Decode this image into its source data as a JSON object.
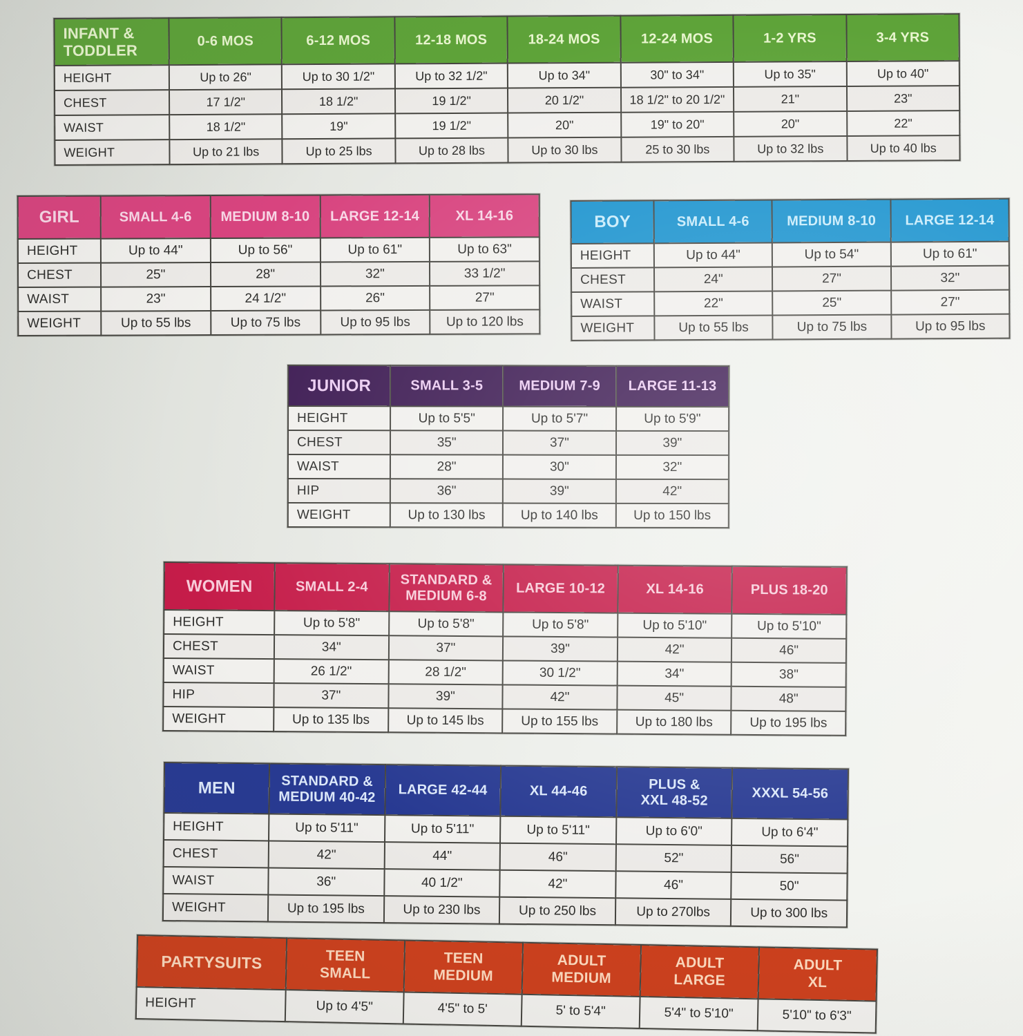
{
  "page": {
    "description": "Costume size chart page",
    "paper_color": "#eef0ec",
    "border_color": "#45443f",
    "cell_bg": "#f1f0ed"
  },
  "tables": [
    {
      "id": "infant-toddler",
      "title": "INFANT &\nTODDLER",
      "theme": {
        "header_bg": "#5ea339",
        "header_text": "#e9f6cf"
      },
      "columns": [
        "0-6 MOS",
        "6-12 MOS",
        "12-18 MOS",
        "18-24 MOS",
        "12-24 MOS",
        "1-2 YRS",
        "3-4 YRS"
      ],
      "rows": [
        {
          "label": "HEIGHT",
          "values": [
            "Up to 26\"",
            "Up to 30 1/2\"",
            "Up to 32 1/2\"",
            "Up to 34\"",
            "30\" to 34\"",
            "Up to 35\"",
            "Up to 40\""
          ]
        },
        {
          "label": "CHEST",
          "values": [
            "17 1/2\"",
            "18 1/2\"",
            "19 1/2\"",
            "20 1/2\"",
            "18 1/2\" to 20 1/2\"",
            "21\"",
            "23\""
          ]
        },
        {
          "label": "WAIST",
          "values": [
            "18 1/2\"",
            "19\"",
            "19 1/2\"",
            "20\"",
            "19\" to 20\"",
            "20\"",
            "22\""
          ]
        },
        {
          "label": "WEIGHT",
          "values": [
            "Up to 21 lbs",
            "Up to 25 lbs",
            "Up to 28 lbs",
            "Up to 30 lbs",
            "25 to 30 lbs",
            "Up to 32 lbs",
            "Up to 40 lbs"
          ]
        }
      ]
    },
    {
      "id": "girl",
      "title": "GIRL",
      "theme": {
        "header_bg": "#d8447f",
        "header_text": "#f8d7e6"
      },
      "columns": [
        "SMALL 4-6",
        "MEDIUM 8-10",
        "LARGE 12-14",
        "XL 14-16"
      ],
      "rows": [
        {
          "label": "HEIGHT",
          "values": [
            "Up to 44\"",
            "Up to 56\"",
            "Up to 61\"",
            "Up to 63\""
          ]
        },
        {
          "label": "CHEST",
          "values": [
            "25\"",
            "28\"",
            "32\"",
            "33 1/2\""
          ]
        },
        {
          "label": "WAIST",
          "values": [
            "23\"",
            "24 1/2\"",
            "26\"",
            "27\""
          ]
        },
        {
          "label": "WEIGHT",
          "values": [
            "Up to 55 lbs",
            "Up to 75 lbs",
            "Up to 95 lbs",
            "Up to 120 lbs"
          ]
        }
      ]
    },
    {
      "id": "boy",
      "title": "BOY",
      "theme": {
        "header_bg": "#1d94cf",
        "header_text": "#c9ecfb"
      },
      "columns": [
        "SMALL 4-6",
        "MEDIUM 8-10",
        "LARGE 12-14"
      ],
      "rows": [
        {
          "label": "HEIGHT",
          "values": [
            "Up to 44\"",
            "Up to 54\"",
            "Up to 61\""
          ]
        },
        {
          "label": "CHEST",
          "values": [
            "24\"",
            "27\"",
            "32\""
          ]
        },
        {
          "label": "WAIST",
          "values": [
            "22\"",
            "25\"",
            "27\""
          ]
        },
        {
          "label": "WEIGHT",
          "values": [
            "Up to 55 lbs",
            "Up to 75 lbs",
            "Up to 95 lbs"
          ]
        }
      ]
    },
    {
      "id": "junior",
      "title": "JUNIOR",
      "theme": {
        "header_bg": "#3d1b53",
        "header_text": "#eccdf2"
      },
      "columns": [
        "SMALL 3-5",
        "MEDIUM 7-9",
        "LARGE 11-13"
      ],
      "rows": [
        {
          "label": "HEIGHT",
          "values": [
            "Up to 5'5\"",
            "Up to 5'7\"",
            "Up to 5'9\""
          ]
        },
        {
          "label": "CHEST",
          "values": [
            "35\"",
            "37\"",
            "39\""
          ]
        },
        {
          "label": "WAIST",
          "values": [
            "28\"",
            "30\"",
            "32\""
          ]
        },
        {
          "label": "HIP",
          "values": [
            "36\"",
            "39\"",
            "42\""
          ]
        },
        {
          "label": "WEIGHT",
          "values": [
            "Up to 130 lbs",
            "Up to 140 lbs",
            "Up to 150 lbs"
          ]
        }
      ]
    },
    {
      "id": "women",
      "title": "WOMEN",
      "theme": {
        "header_bg": "#c51c49",
        "header_text": "#f8ccd9"
      },
      "columns": [
        "SMALL 2-4",
        "STANDARD &\nMEDIUM 6-8",
        "LARGE 10-12",
        "XL 14-16",
        "PLUS 18-20"
      ],
      "rows": [
        {
          "label": "HEIGHT",
          "values": [
            "Up to 5'8\"",
            "Up to 5'8\"",
            "Up to 5'8\"",
            "Up to 5'10\"",
            "Up to 5'10\""
          ]
        },
        {
          "label": "CHEST",
          "values": [
            "34\"",
            "37\"",
            "39\"",
            "42\"",
            "46\""
          ]
        },
        {
          "label": "WAIST",
          "values": [
            "26 1/2\"",
            "28 1/2\"",
            "30 1/2\"",
            "34\"",
            "38\""
          ]
        },
        {
          "label": "HIP",
          "values": [
            "37\"",
            "39\"",
            "42\"",
            "45\"",
            "48\""
          ]
        },
        {
          "label": "WEIGHT",
          "values": [
            "Up to 135 lbs",
            "Up to 145 lbs",
            "Up to 155 lbs",
            "Up to 180 lbs",
            "Up to 195 lbs"
          ]
        }
      ]
    },
    {
      "id": "men",
      "title": "MEN",
      "theme": {
        "header_bg": "#283a92",
        "header_text": "#dce8fa"
      },
      "columns": [
        "STANDARD &\nMEDIUM 40-42",
        "LARGE 42-44",
        "XL 44-46",
        "PLUS &\nXXL 48-52",
        "XXXL 54-56"
      ],
      "rows": [
        {
          "label": "HEIGHT",
          "values": [
            "Up to 5'11\"",
            "Up to 5'11\"",
            "Up to 5'11\"",
            "Up to 6'0\"",
            "Up to 6'4\""
          ]
        },
        {
          "label": "CHEST",
          "values": [
            "42\"",
            "44\"",
            "46\"",
            "52\"",
            "56\""
          ]
        },
        {
          "label": "WAIST",
          "values": [
            "36\"",
            "40 1/2\"",
            "42\"",
            "46\"",
            "50\""
          ]
        },
        {
          "label": "WEIGHT",
          "values": [
            "Up to 195 lbs",
            "Up to 230 lbs",
            "Up to 250 lbs",
            "Up to 270lbs",
            "Up to 300 lbs"
          ]
        }
      ]
    },
    {
      "id": "partysuits",
      "title": "PARTYSUITS",
      "theme": {
        "header_bg": "#cc401d",
        "header_text": "#fcd8bd"
      },
      "columns": [
        "TEEN\nSMALL",
        "TEEN\nMEDIUM",
        "ADULT\nMEDIUM",
        "ADULT\nLARGE",
        "ADULT\nXL"
      ],
      "rows": [
        {
          "label": "HEIGHT",
          "values": [
            "Up to 4'5\"",
            "4'5\" to 5'",
            "5' to 5'4\"",
            "5'4\" to 5'10\"",
            "5'10\" to 6'3\""
          ]
        }
      ]
    }
  ]
}
